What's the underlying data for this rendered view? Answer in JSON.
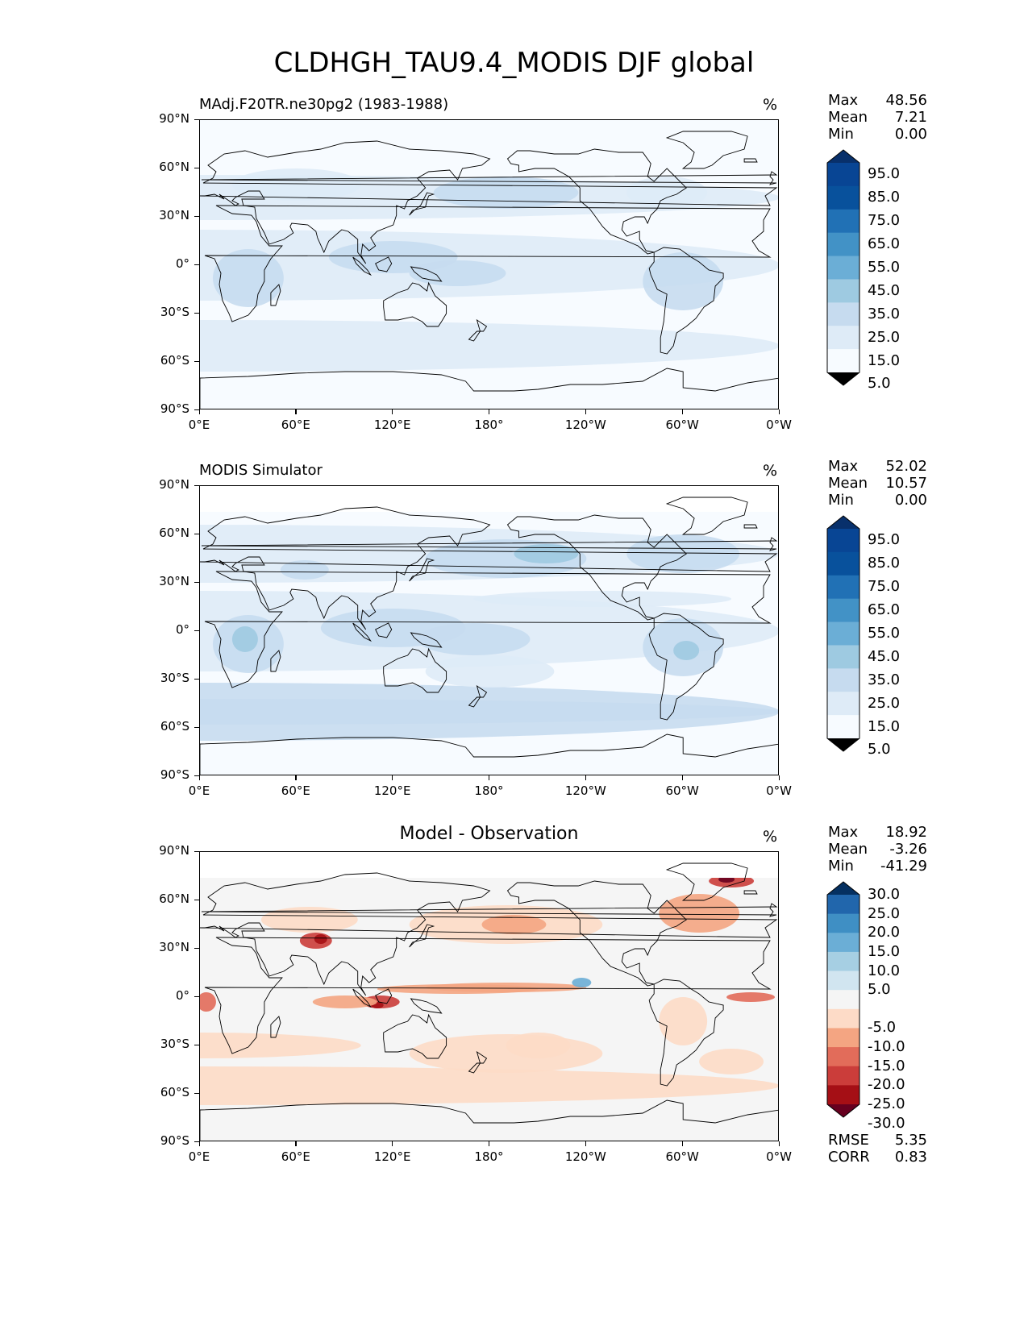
{
  "title": "CLDHGH_TAU9.4_MODIS DJF global",
  "lat_ticks": [
    "90°N",
    "60°N",
    "30°N",
    "0°",
    "30°S",
    "60°S",
    "90°S"
  ],
  "lon_ticks": [
    "0°E",
    "60°E",
    "120°E",
    "180°",
    "120°W",
    "60°W",
    "0°W"
  ],
  "colors": {
    "blues": [
      "#f7fbff",
      "#deebf7",
      "#c6dbef",
      "#9ecae1",
      "#6baed6",
      "#4292c6",
      "#2171b5",
      "#08519c",
      "#084594",
      "#08306b"
    ],
    "diverging": [
      "#67001f",
      "#a50f15",
      "#cb3d3a",
      "#e26c5a",
      "#f4a582",
      "#fddbc7",
      "#f5f5f5",
      "#d1e5f0",
      "#a6cfe3",
      "#6baed6",
      "#3f8fc4",
      "#2166ac",
      "#053061"
    ],
    "land_outline": "#000000"
  },
  "panels": [
    {
      "id": "test",
      "title": "MAdj.F20TR.ne30pg2 (1983-1988)",
      "title_align": "left",
      "unit": "%",
      "stats": [
        {
          "label": "Max",
          "value": "48.56"
        },
        {
          "label": "Mean",
          "value": "7.21"
        },
        {
          "label": "Min",
          "value": "0.00"
        }
      ],
      "colorbar": {
        "scale": "blues",
        "levels": [
          "95.0",
          "85.0",
          "75.0",
          "65.0",
          "55.0",
          "45.0",
          "35.0",
          "25.0",
          "15.0",
          "5.0"
        ]
      }
    },
    {
      "id": "reference",
      "title": "MODIS Simulator",
      "title_align": "left",
      "unit": "%",
      "stats": [
        {
          "label": "Max",
          "value": "52.02"
        },
        {
          "label": "Mean",
          "value": "10.57"
        },
        {
          "label": "Min",
          "value": "0.00"
        }
      ],
      "colorbar": {
        "scale": "blues",
        "levels": [
          "95.0",
          "85.0",
          "75.0",
          "65.0",
          "55.0",
          "45.0",
          "35.0",
          "25.0",
          "15.0",
          "5.0"
        ]
      }
    },
    {
      "id": "diff",
      "title": "Model - Observation",
      "title_align": "center",
      "unit": "%",
      "stats": [
        {
          "label": "Max",
          "value": "18.92"
        },
        {
          "label": "Mean",
          "value": "-3.26"
        },
        {
          "label": "Min",
          "value": "-41.29"
        }
      ],
      "colorbar": {
        "scale": "diverging",
        "levels": [
          "30.0",
          "25.0",
          "20.0",
          "15.0",
          "10.0",
          "5.0",
          "-5.0",
          "-10.0",
          "-15.0",
          "-20.0",
          "-25.0",
          "-30.0"
        ]
      },
      "metrics": [
        {
          "label": "RMSE",
          "value": "5.35"
        },
        {
          "label": "CORR",
          "value": "0.83"
        }
      ]
    }
  ]
}
